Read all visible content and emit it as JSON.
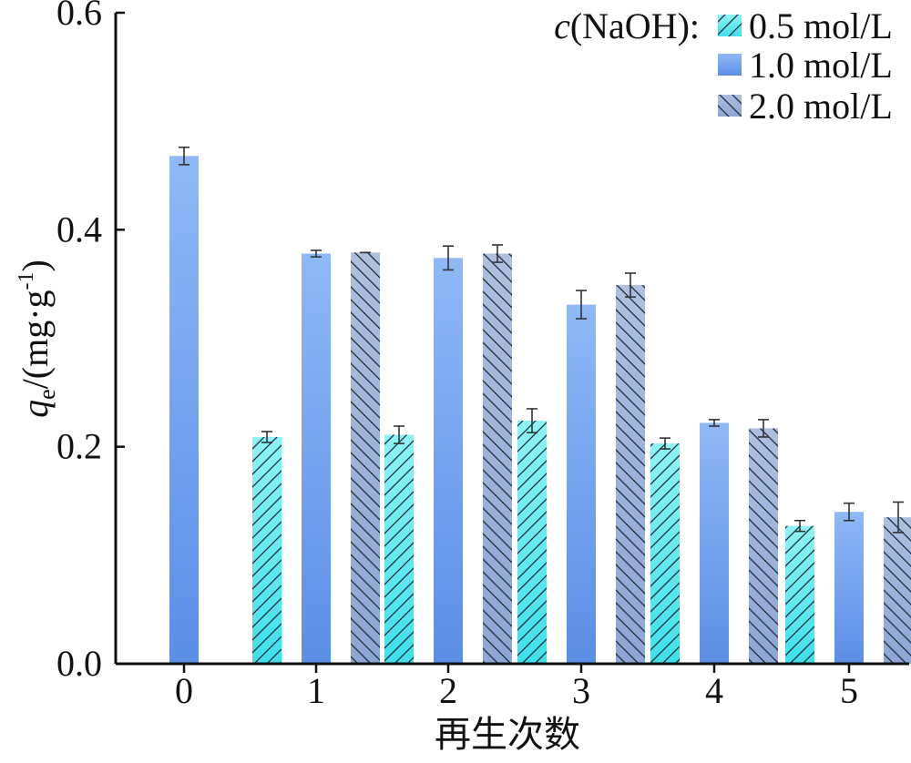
{
  "chart_data": {
    "type": "bar",
    "categories": [
      "0",
      "1",
      "2",
      "3",
      "4",
      "5"
    ],
    "xlabel": "再生次数",
    "ylabel": {
      "symbol": "q",
      "subscript": "e",
      "unit": "/(mg·g",
      "unit_sup": "-1",
      "close": ")"
    },
    "ylim": [
      0.0,
      0.6
    ],
    "yticks": [
      "0.0",
      "0.2",
      "0.4",
      "0.6"
    ],
    "legend": {
      "prefix_italic": "c",
      "prefix": "(NaOH):",
      "placement": "top-right"
    },
    "series": [
      {
        "name": "0.5 mol/L",
        "pattern": "hatch-forward",
        "color": "#3ee0ea",
        "values": [
          null,
          0.209,
          0.211,
          0.224,
          0.203,
          0.127
        ],
        "errors": [
          null,
          0.005,
          0.008,
          0.011,
          0.005,
          0.005
        ]
      },
      {
        "name": "1.0 mol/L",
        "pattern": "solid",
        "color": "#5b8ee6",
        "values": [
          0.468,
          0.378,
          0.374,
          0.331,
          0.222,
          0.14
        ],
        "errors": [
          0.008,
          0.003,
          0.011,
          0.013,
          0.003,
          0.008
        ]
      },
      {
        "name": "2.0 mol/L",
        "pattern": "hatch-back",
        "color": "#8ea6d4",
        "values": [
          null,
          0.379,
          0.378,
          0.349,
          0.217,
          0.135
        ],
        "errors": [
          null,
          0.0,
          0.008,
          0.011,
          0.008,
          0.014
        ]
      }
    ]
  }
}
